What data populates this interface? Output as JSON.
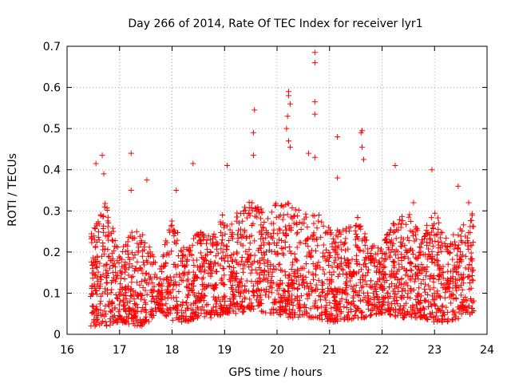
{
  "chart_data": {
    "type": "scatter",
    "title": "Day 266 of 2014, Rate Of TEC Index for receiver lyr1",
    "xlabel": "GPS time / hours",
    "ylabel": "ROTI / TECUs",
    "xlim": [
      16,
      24
    ],
    "ylim": [
      0,
      0.7
    ],
    "xticks": [
      "16",
      "17",
      "18",
      "19",
      "20",
      "21",
      "22",
      "23",
      "24"
    ],
    "yticks": [
      "0",
      "0.1",
      "0.2",
      "0.3",
      "0.4",
      "0.5",
      "0.6",
      "0.7"
    ],
    "grid": true,
    "marker": "+",
    "color": "#ff0000",
    "x_range_of_data": [
      16.45,
      23.75
    ],
    "notable_points": [
      {
        "x": 20.72,
        "y": 0.685
      },
      {
        "x": 20.72,
        "y": 0.66
      },
      {
        "x": 20.22,
        "y": 0.59
      },
      {
        "x": 20.22,
        "y": 0.58
      },
      {
        "x": 20.25,
        "y": 0.56
      },
      {
        "x": 20.72,
        "y": 0.565
      },
      {
        "x": 19.57,
        "y": 0.545
      },
      {
        "x": 20.2,
        "y": 0.53
      },
      {
        "x": 20.72,
        "y": 0.535
      },
      {
        "x": 20.18,
        "y": 0.5
      },
      {
        "x": 19.55,
        "y": 0.49
      },
      {
        "x": 21.62,
        "y": 0.495
      },
      {
        "x": 21.6,
        "y": 0.49
      },
      {
        "x": 21.15,
        "y": 0.48
      },
      {
        "x": 20.22,
        "y": 0.47
      },
      {
        "x": 20.25,
        "y": 0.455
      },
      {
        "x": 21.62,
        "y": 0.455
      },
      {
        "x": 16.67,
        "y": 0.435
      },
      {
        "x": 17.22,
        "y": 0.44
      },
      {
        "x": 20.6,
        "y": 0.44
      },
      {
        "x": 19.55,
        "y": 0.435
      },
      {
        "x": 20.72,
        "y": 0.43
      },
      {
        "x": 21.65,
        "y": 0.425
      },
      {
        "x": 16.55,
        "y": 0.415
      },
      {
        "x": 18.4,
        "y": 0.415
      },
      {
        "x": 19.05,
        "y": 0.41
      },
      {
        "x": 22.25,
        "y": 0.41
      },
      {
        "x": 22.95,
        "y": 0.4
      },
      {
        "x": 16.7,
        "y": 0.39
      },
      {
        "x": 21.15,
        "y": 0.38
      },
      {
        "x": 17.52,
        "y": 0.375
      },
      {
        "x": 23.45,
        "y": 0.36
      },
      {
        "x": 17.22,
        "y": 0.35
      },
      {
        "x": 18.08,
        "y": 0.35
      },
      {
        "x": 22.6,
        "y": 0.32
      },
      {
        "x": 23.65,
        "y": 0.32
      }
    ],
    "density_profile": {
      "x": [
        16.5,
        16.75,
        17.0,
        17.25,
        17.5,
        17.75,
        18.0,
        18.25,
        18.5,
        18.75,
        19.0,
        19.25,
        19.5,
        19.75,
        20.0,
        20.25,
        20.5,
        20.75,
        21.0,
        21.25,
        21.5,
        21.75,
        22.0,
        22.25,
        22.5,
        22.75,
        23.0,
        23.25,
        23.5,
        23.7
      ],
      "typical_max": [
        0.26,
        0.33,
        0.2,
        0.26,
        0.25,
        0.15,
        0.3,
        0.2,
        0.26,
        0.24,
        0.3,
        0.3,
        0.33,
        0.3,
        0.32,
        0.32,
        0.3,
        0.3,
        0.26,
        0.26,
        0.3,
        0.22,
        0.22,
        0.28,
        0.3,
        0.24,
        0.3,
        0.24,
        0.26,
        0.3
      ],
      "typical_min": [
        0.02,
        0.02,
        0.03,
        0.02,
        0.02,
        0.06,
        0.03,
        0.03,
        0.04,
        0.04,
        0.05,
        0.05,
        0.06,
        0.05,
        0.05,
        0.04,
        0.04,
        0.04,
        0.03,
        0.03,
        0.04,
        0.04,
        0.05,
        0.04,
        0.04,
        0.04,
        0.03,
        0.03,
        0.04,
        0.05
      ]
    }
  }
}
